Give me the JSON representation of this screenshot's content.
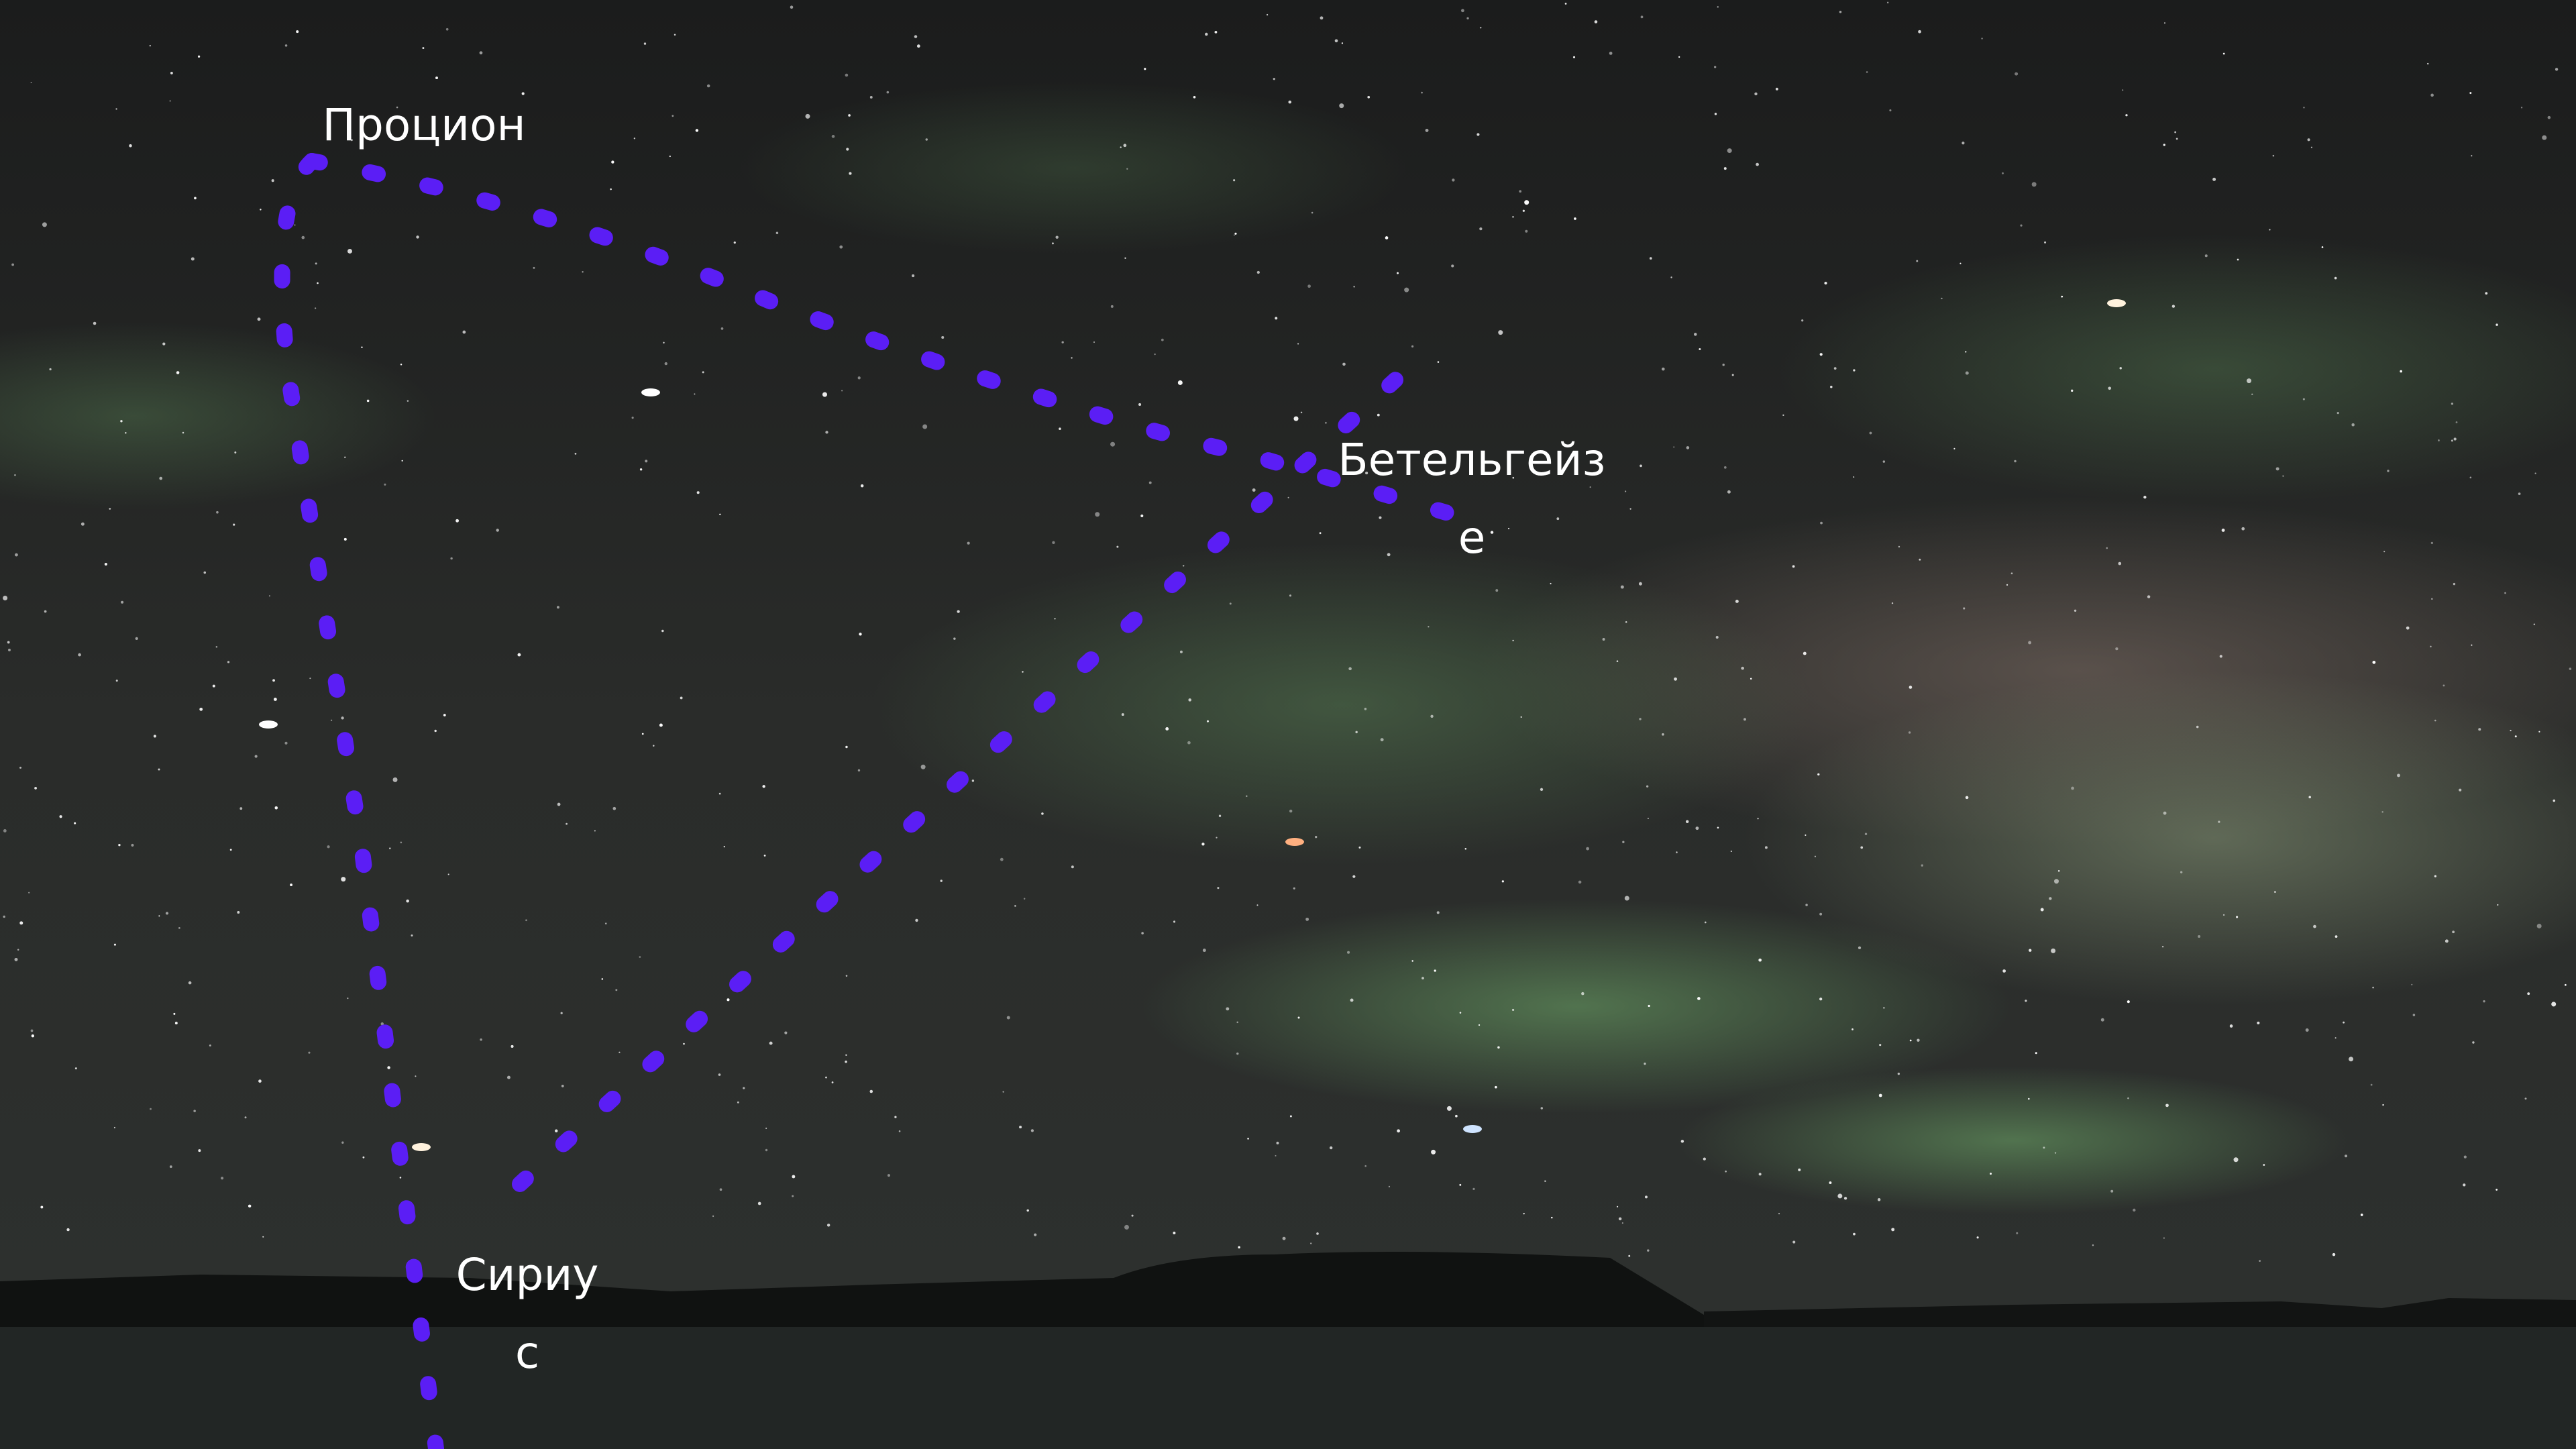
{
  "labels": [
    {
      "lines": [
        "Процион"
      ]
    },
    {
      "lines": [
        "Бетельгейз",
        "е"
      ]
    },
    {
      "lines": [
        "Сириу",
        "с"
      ]
    }
  ]
}
